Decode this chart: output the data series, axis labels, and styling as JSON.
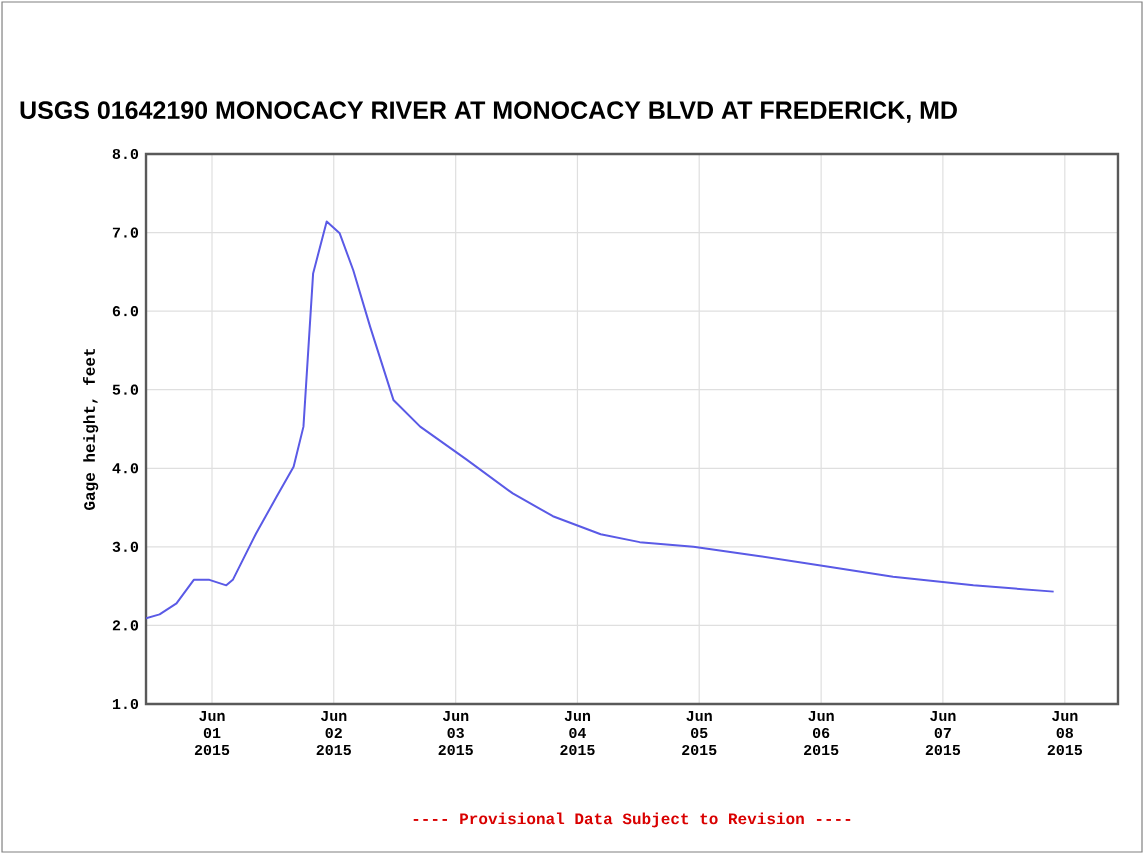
{
  "chart_data": {
    "type": "line",
    "title": "USGS 01642190 MONOCACY RIVER AT MONOCACY BLVD AT FREDERICK, MD",
    "ylabel": "Gage height, feet",
    "annotations": [
      "---- Provisional Data Subject to Revision ----"
    ],
    "series": [
      {
        "color": "#5a5ae6",
        "x": [
          "2015-05-31T11:00",
          "2015-05-31T13:40",
          "2015-05-31T17:00",
          "2015-05-31T20:24",
          "2015-05-31T23:30",
          "2015-06-01T02:50",
          "2015-06-01T04:05",
          "2015-06-01T08:40",
          "2015-06-01T12:45",
          "2015-06-01T16:05",
          "2015-06-01T18:00",
          "2015-06-01T19:55",
          "2015-06-01T22:35",
          "2015-06-02T01:10",
          "2015-06-02T03:50",
          "2015-06-02T07:10",
          "2015-06-02T11:45",
          "2015-06-02T17:00",
          "2015-06-03T02:10",
          "2015-06-03T11:15",
          "2015-06-03T19:10",
          "2015-06-04T04:35",
          "2015-06-04T12:15",
          "2015-06-04T22:50",
          "2015-06-05T12:00",
          "2015-06-06T01:10",
          "2015-06-06T14:10",
          "2015-06-07T06:00",
          "2015-06-07T21:50"
        ],
        "values": [
          2.09,
          2.14,
          2.28,
          2.58,
          2.58,
          2.51,
          2.58,
          3.17,
          3.64,
          4.02,
          4.53,
          6.48,
          7.14,
          6.99,
          6.52,
          5.8,
          4.87,
          4.53,
          4.11,
          3.68,
          3.39,
          3.16,
          3.06,
          3.0,
          2.88,
          2.75,
          2.62,
          2.51,
          2.43
        ]
      }
    ],
    "xlim": [
      "2015-05-31T11:00",
      "2015-06-08T10:30"
    ],
    "xticks": [
      {
        "value": "2015-06-01",
        "label": "Jun 01 2015"
      },
      {
        "value": "2015-06-02",
        "label": "Jun 02 2015"
      },
      {
        "value": "2015-06-03",
        "label": "Jun 03 2015"
      },
      {
        "value": "2015-06-04",
        "label": "Jun 04 2015"
      },
      {
        "value": "2015-06-05",
        "label": "Jun 05 2015"
      },
      {
        "value": "2015-06-06",
        "label": "Jun 06 2015"
      },
      {
        "value": "2015-06-07",
        "label": "Jun 07 2015"
      },
      {
        "value": "2015-06-08",
        "label": "Jun 08 2015"
      }
    ],
    "ylim": [
      1,
      8
    ],
    "yticks": [
      {
        "value": 1,
        "label": "1.0"
      },
      {
        "value": 2,
        "label": "2.0"
      },
      {
        "value": 3,
        "label": "3.0"
      },
      {
        "value": 4,
        "label": "4.0"
      },
      {
        "value": 5,
        "label": "5.0"
      },
      {
        "value": 6,
        "label": "6.0"
      },
      {
        "value": 7,
        "label": "7.0"
      },
      {
        "value": 8,
        "label": "8.0"
      }
    ],
    "grid": true
  }
}
